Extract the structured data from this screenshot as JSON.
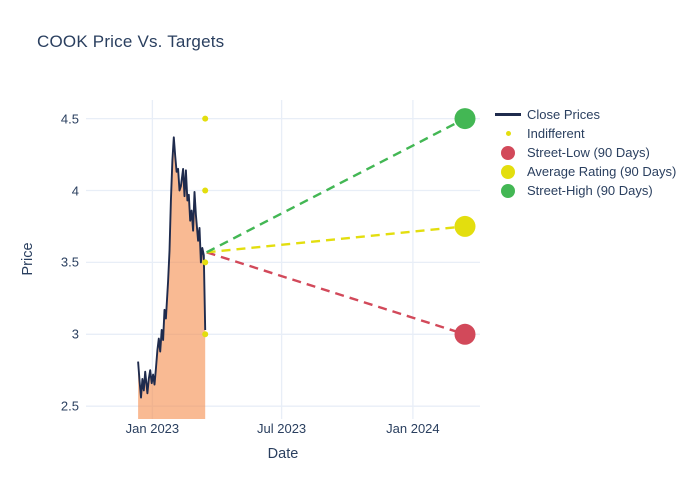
{
  "chart_data": {
    "type": "line",
    "title": "COOK Price Vs. Targets",
    "xlabel": "Date",
    "ylabel": "Price",
    "grid": true,
    "legend_position": "right",
    "x_domain": [
      "2022-09-30",
      "2024-04-04"
    ],
    "y_domain": [
      2.411,
      4.629
    ],
    "x_ticks": [
      {
        "label": "Jan 2023",
        "date": "2023-01-01"
      },
      {
        "label": "Jul 2023",
        "date": "2023-07-01"
      },
      {
        "label": "Jan 2024",
        "date": "2024-01-01"
      }
    ],
    "y_ticks": [
      {
        "label": "2.5",
        "value": 2.5
      },
      {
        "label": "3",
        "value": 3
      },
      {
        "label": "3.5",
        "value": 3.5
      },
      {
        "label": "4",
        "value": 4
      },
      {
        "label": "4.5",
        "value": 4.5
      }
    ],
    "colors": {
      "close_line": "#1f2b4d",
      "close_fill": "rgba(245,140,75,0.6)",
      "indifferent": "#e3de0e",
      "street_low": "#d2495a",
      "average_rating": "#e3de0e",
      "street_high": "#43b754",
      "gridline": "#e8eef7",
      "text": "#2a3f5f"
    },
    "series": {
      "close_prices": {
        "name": "Close Prices",
        "dates": [
          "2022-12-12",
          "2022-12-14",
          "2022-12-16",
          "2022-12-18",
          "2022-12-20",
          "2022-12-22",
          "2022-12-25",
          "2022-12-27",
          "2022-12-29",
          "2022-12-31",
          "2023-01-02",
          "2023-01-04",
          "2023-01-06",
          "2023-01-08",
          "2023-01-10",
          "2023-01-12",
          "2023-01-14",
          "2023-01-16",
          "2023-01-18",
          "2023-01-20",
          "2023-01-23",
          "2023-01-25",
          "2023-01-27",
          "2023-01-29",
          "2023-01-31",
          "2023-02-02",
          "2023-02-04",
          "2023-02-06",
          "2023-02-08",
          "2023-02-10",
          "2023-02-13",
          "2023-02-15",
          "2023-02-17",
          "2023-02-19",
          "2023-02-21",
          "2023-02-23",
          "2023-02-25",
          "2023-02-27",
          "2023-03-01",
          "2023-03-03",
          "2023-03-06",
          "2023-03-08",
          "2023-03-10",
          "2023-03-12",
          "2023-03-14",
          "2023-03-16"
        ],
        "values": [
          2.81,
          2.68,
          2.56,
          2.69,
          2.61,
          2.74,
          2.59,
          2.69,
          2.75,
          2.66,
          2.72,
          2.65,
          2.76,
          2.89,
          2.97,
          2.88,
          3.03,
          2.96,
          3.17,
          3.11,
          3.37,
          3.58,
          3.93,
          4.21,
          4.37,
          4.24,
          4.13,
          4.15,
          4.0,
          4.03,
          4.15,
          3.96,
          4.14,
          3.93,
          3.97,
          3.79,
          3.86,
          3.72,
          3.99,
          3.83,
          3.65,
          3.74,
          3.5,
          3.6,
          3.55,
          3.03
        ]
      },
      "indifferent": {
        "name": "Indifferent",
        "date": "2023-03-16",
        "values": [
          4.5,
          4.0,
          3.5,
          3.0
        ]
      },
      "targets": {
        "anchor": {
          "date": "2023-03-18",
          "value": 3.57
        },
        "end_date": "2024-03-14",
        "items": [
          {
            "name": "Street-Low (90 Days)",
            "value": 3.0,
            "color": "#d2495a"
          },
          {
            "name": "Average Rating (90 Days)",
            "value": 3.75,
            "color": "#e3de0e"
          },
          {
            "name": "Street-High (90 Days)",
            "value": 4.5,
            "color": "#43b754"
          }
        ]
      }
    },
    "legend": [
      {
        "label": "Close Prices",
        "marker": "line",
        "color": "#1f2b4d"
      },
      {
        "label": "Indifferent",
        "marker": "dot-small",
        "color": "#e3de0e"
      },
      {
        "label": "Street-Low (90 Days)",
        "marker": "dot",
        "color": "#d2495a"
      },
      {
        "label": "Average Rating (90 Days)",
        "marker": "dot",
        "color": "#e3de0e"
      },
      {
        "label": "Street-High (90 Days)",
        "marker": "dot",
        "color": "#43b754"
      }
    ]
  }
}
